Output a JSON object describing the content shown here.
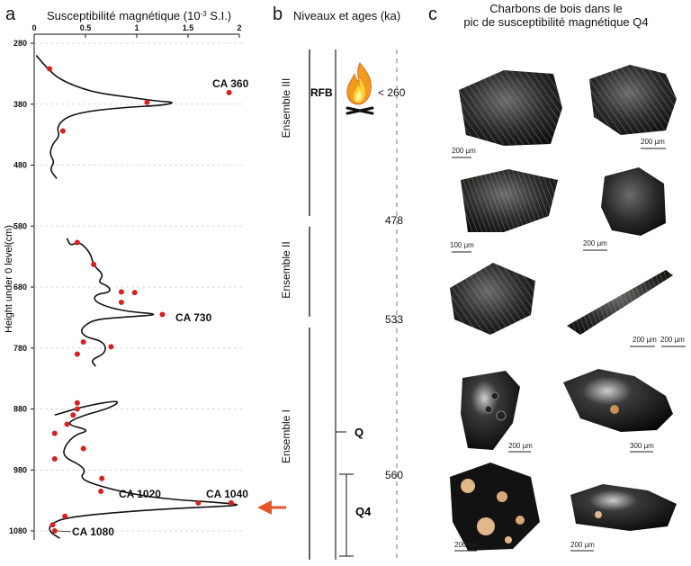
{
  "panel_a": {
    "letter": "a",
    "title_main": "Susceptibilité magnétique (10",
    "title_exp": "-3",
    "title_unit": " S.I.)",
    "ylabel": "Height under 0 level(cm)",
    "x_ticks": [
      "0",
      "0.5",
      "1",
      "1.5",
      "2"
    ],
    "y_ticks": [
      "280",
      "380",
      "480",
      "580",
      "680",
      "780",
      "880",
      "980",
      "1080"
    ],
    "samples": [
      "CA 360",
      "CA 730",
      "CA 1020",
      "CA 1040",
      "CA 1080"
    ]
  },
  "panel_b": {
    "letter": "b",
    "title": "Niveaux et ages (ka)",
    "ensembles": [
      "Ensemble III",
      "Ensemble II",
      "Ensemble I"
    ],
    "rfb": "RFB",
    "ages": [
      "< 260",
      "478",
      "533",
      "560"
    ],
    "q": "Q",
    "q4": "Q4",
    "fire_icon": "campfire-icon",
    "arrow_icon": "arrow-left-icon",
    "arrow_color": "#e8542a"
  },
  "panel_c": {
    "letter": "c",
    "title_line1": "Charbons de bois dans le",
    "title_line2": "pic de susceptibilité magnétique Q4",
    "scales": [
      "200 µm",
      "200 µm",
      "100 µm",
      "200 µm",
      "200 µm",
      "200 µm",
      "200 µm",
      "300 µm",
      "200 µm",
      "200 µm"
    ]
  },
  "chart_data": {
    "type": "line",
    "xlabel": "Susceptibilité magnétique (10-3 S.I.)",
    "ylabel": "Height under 0 level(cm)",
    "xlim": [
      0,
      2
    ],
    "ylim": [
      1080,
      280
    ],
    "series": [
      {
        "values": [
          [
            0.02,
            300
          ],
          [
            0.12,
            320
          ],
          [
            0.25,
            340
          ],
          [
            0.55,
            360
          ],
          [
            0.9,
            368
          ],
          [
            1.2,
            375
          ],
          [
            1.38,
            377
          ],
          [
            1.25,
            382
          ],
          [
            0.9,
            385
          ],
          [
            0.5,
            392
          ],
          [
            0.3,
            402
          ],
          [
            0.22,
            418
          ],
          [
            0.25,
            432
          ],
          [
            0.18,
            445
          ],
          [
            0.15,
            462
          ],
          [
            0.2,
            475
          ],
          [
            0.15,
            487
          ],
          [
            0.22,
            502
          ]
        ]
      },
      {
        "values": [
          [
            0.32,
            600
          ],
          [
            0.35,
            612
          ],
          [
            0.42,
            607
          ],
          [
            0.47,
            610
          ],
          [
            0.55,
            625
          ],
          [
            0.58,
            645
          ],
          [
            0.68,
            660
          ],
          [
            0.62,
            672
          ],
          [
            0.72,
            678
          ],
          [
            0.75,
            688
          ],
          [
            0.6,
            692
          ],
          [
            0.58,
            702
          ],
          [
            0.7,
            712
          ],
          [
            0.9,
            720
          ],
          [
            1.25,
            725
          ],
          [
            0.9,
            729
          ],
          [
            0.6,
            733
          ],
          [
            0.5,
            742
          ],
          [
            0.45,
            752
          ],
          [
            0.5,
            762
          ],
          [
            0.65,
            768
          ],
          [
            0.7,
            778
          ],
          [
            0.68,
            790
          ],
          [
            0.55,
            800
          ],
          [
            0.6,
            810
          ]
        ]
      },
      {
        "values": [
          [
            0.2,
            890
          ],
          [
            0.5,
            875
          ],
          [
            0.85,
            865
          ],
          [
            0.75,
            878
          ],
          [
            0.45,
            892
          ],
          [
            0.3,
            905
          ],
          [
            0.55,
            915
          ],
          [
            0.4,
            922
          ],
          [
            0.3,
            940
          ],
          [
            0.28,
            958
          ],
          [
            0.45,
            972
          ],
          [
            0.5,
            982
          ],
          [
            0.45,
            992
          ],
          [
            0.55,
            1002
          ],
          [
            0.9,
            1018
          ],
          [
            1.3,
            1028
          ],
          [
            1.85,
            1034
          ],
          [
            2.05,
            1038
          ],
          [
            1.5,
            1042
          ],
          [
            0.9,
            1048
          ],
          [
            0.3,
            1058
          ],
          [
            0.15,
            1070
          ],
          [
            0.15,
            1082
          ],
          [
            0.25,
            1092
          ]
        ]
      }
    ],
    "points": [
      [
        0.15,
        322
      ],
      [
        1.1,
        377
      ],
      [
        1.9,
        361
      ],
      [
        0.28,
        424
      ],
      [
        0.42,
        607
      ],
      [
        0.58,
        643
      ],
      [
        0.85,
        688
      ],
      [
        0.98,
        689
      ],
      [
        0.85,
        705
      ],
      [
        1.25,
        725
      ],
      [
        0.48,
        770
      ],
      [
        0.75,
        778
      ],
      [
        0.42,
        790
      ],
      [
        0.42,
        870
      ],
      [
        0.42,
        880
      ],
      [
        0.38,
        890
      ],
      [
        0.32,
        905
      ],
      [
        0.2,
        920
      ],
      [
        0.48,
        945
      ],
      [
        0.2,
        962
      ],
      [
        0.66,
        994
      ],
      [
        0.65,
        1015
      ],
      [
        1.6,
        1034
      ],
      [
        1.92,
        1034
      ],
      [
        0.3,
        1056
      ],
      [
        0.18,
        1070
      ],
      [
        0.2,
        1080
      ]
    ],
    "point_color": "#d91f1f"
  }
}
